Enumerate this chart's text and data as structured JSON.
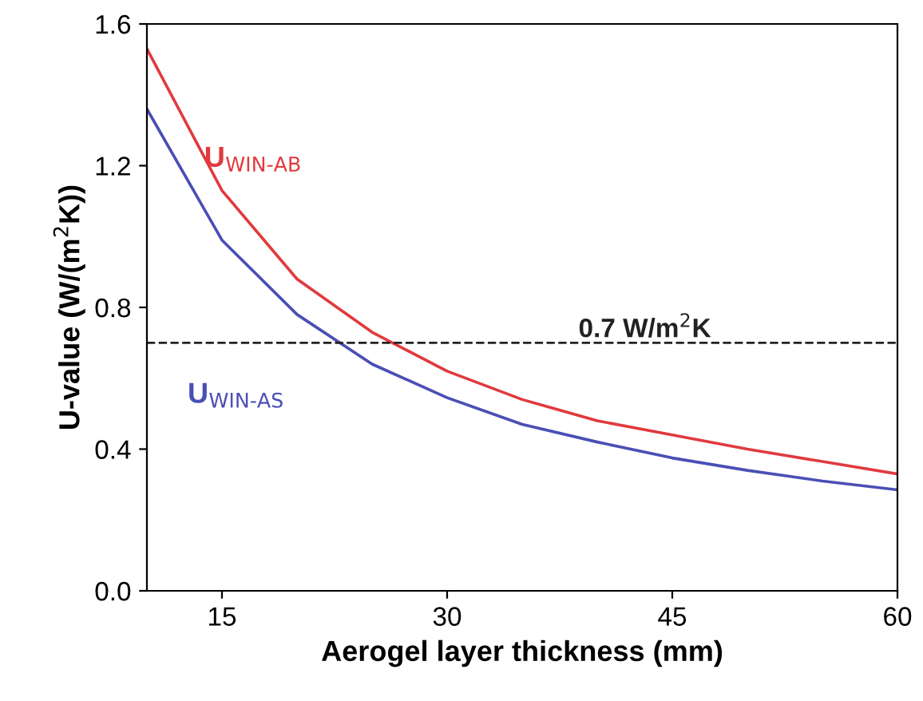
{
  "chart_data": {
    "type": "line",
    "xlabel": "Aerogel layer thickness (mm)",
    "ylabel": "U-value (W/(m$^{2}$K))",
    "x": [
      10,
      15,
      20,
      25,
      30,
      35,
      40,
      45,
      50,
      55,
      60
    ],
    "series": [
      {
        "name": "U$_{WIN-AB}$",
        "color": "#e03a3e",
        "values": [
          1.53,
          1.13,
          0.88,
          0.73,
          0.62,
          0.54,
          0.48,
          0.44,
          0.4,
          0.365,
          0.33
        ]
      },
      {
        "name": "U$_{WIN-AS}$",
        "color": "#4a4fb5",
        "values": [
          1.36,
          0.99,
          0.78,
          0.64,
          0.545,
          0.47,
          0.42,
          0.375,
          0.34,
          0.31,
          0.285
        ]
      }
    ],
    "xlim": [
      10,
      60
    ],
    "xticks": [
      15,
      30,
      45,
      60
    ],
    "ylim": [
      0,
      1.6
    ],
    "yticks": [
      {
        "value": 0,
        "label": "0.0"
      },
      0.4,
      0.8,
      1.2,
      1.6
    ],
    "ref_lines": [
      {
        "axis": "y",
        "value": 0.7,
        "label": "0.7 W/m$^{2}$K",
        "color": "#222222",
        "line_style": "dashed"
      }
    ],
    "legend": false,
    "grid": false,
    "marker": "none",
    "line_style": "solid"
  }
}
